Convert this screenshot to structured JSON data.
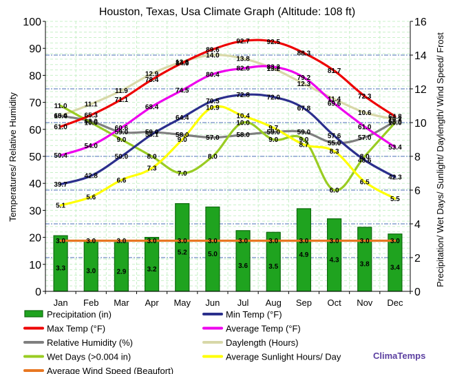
{
  "chart_data": {
    "type": "line",
    "title": "Houston, Texas, Usa Climate Graph (Altitude: 108 ft)",
    "ylabel_left": "Temperatures/ Relative Humidity",
    "ylabel_right": "Precipitation/ Wet Days/ Sunlight/ Daylength/ Wind Speed/ Frost",
    "categories": [
      "Jan",
      "Feb",
      "Mar",
      "Apr",
      "May",
      "Jun",
      "Jul",
      "Aug",
      "Sep",
      "Oct",
      "Nov",
      "Dec"
    ],
    "ylim_left": [
      0,
      100
    ],
    "ylim_right": [
      0,
      16
    ],
    "left_ticks": [
      "0",
      "10",
      "20",
      "30",
      "40",
      "50",
      "60",
      "70",
      "80",
      "90",
      "100"
    ],
    "right_ticks": [
      "0",
      "2",
      "4",
      "6",
      "8",
      "10",
      "12",
      "14",
      "16"
    ],
    "grid": true,
    "legend_position": "bottom",
    "brand": "ClimaTemps",
    "series": [
      {
        "name": "Precipitation (in)",
        "kind": "bar",
        "axis": "right",
        "color": "#1fa31f",
        "values": [
          3.3,
          3.0,
          2.9,
          3.2,
          5.2,
          5.0,
          3.6,
          3.5,
          4.9,
          4.3,
          3.8,
          3.4
        ],
        "labels": [
          "3.3",
          "3.0",
          "2.9",
          "3.2",
          "5.2",
          "5.0",
          "3.6",
          "3.5",
          "4.9",
          "4.3",
          "3.8",
          "3.4"
        ]
      },
      {
        "name": "Min Temp (°F)",
        "kind": "line",
        "axis": "left",
        "color": "#2b2f8c",
        "values": [
          39.7,
          42.8,
          50.0,
          58.1,
          64.4,
          70.5,
          72.8,
          72.0,
          67.8,
          57.6,
          48.6,
          42.3
        ],
        "labels": [
          "39.7",
          "42.8",
          "50.0",
          "58.1",
          "64.4",
          "70.5",
          "72.8",
          "72.0",
          "67.8",
          "57.6",
          "48.6",
          "42.3"
        ]
      },
      {
        "name": "Max Temp (°F)",
        "kind": "line",
        "axis": "left",
        "color": "#ee0000",
        "values": [
          61.0,
          65.3,
          71.1,
          78.4,
          84.6,
          89.6,
          92.7,
          92.5,
          88.3,
          81.7,
          72.3,
          64.8
        ],
        "labels": [
          "61.0",
          "65.3",
          "71.1",
          "78.4",
          "84.6",
          "89.6",
          "92.7",
          "92.5",
          "88.3",
          "81.7",
          "72.3",
          "64.8"
        ]
      },
      {
        "name": "Average Temp (°F)",
        "kind": "line",
        "axis": "left",
        "color": "#ee00ee",
        "values": [
          50.4,
          54.0,
          60.6,
          68.4,
          74.5,
          80.4,
          82.6,
          83.2,
          79.2,
          69.6,
          61.0,
          53.4
        ],
        "labels": [
          "50.4",
          "54.0",
          "60.6",
          "68.4",
          "74.5",
          "80.4",
          "82.6",
          "83.2",
          "79.2",
          "69.6",
          "61.0",
          "53.4"
        ]
      },
      {
        "name": "Relative Humidity (%)",
        "kind": "line",
        "axis": "left",
        "color": "#7f7f7f",
        "values": [
          65.0,
          63.0,
          59.0,
          59.0,
          58.0,
          57.0,
          58.0,
          59.0,
          59.0,
          55.0,
          57.0,
          63.0
        ],
        "labels": [
          "65.0",
          "63.0",
          "59.0",
          "59.0",
          "58.0",
          "57.0",
          "58.0",
          "59.0",
          "59.0",
          "55.0",
          "57.0",
          "63.0"
        ]
      },
      {
        "name": "Daylength (Hours)",
        "kind": "line",
        "axis": "right",
        "color": "#d8d8a8",
        "values": [
          10.4,
          11.1,
          11.9,
          12.9,
          13.6,
          14.0,
          13.8,
          13.2,
          12.3,
          11.4,
          10.6,
          10.2
        ],
        "labels": [
          "10.4",
          "11.1",
          "11.9",
          "12.9",
          "13.6",
          "14.0",
          "13.8",
          "13.2",
          "12.3",
          "11.4",
          "10.6",
          "10.2"
        ]
      },
      {
        "name": "Wet Days (>0.004 in)",
        "kind": "line",
        "axis": "right",
        "color": "#99cc22",
        "values": [
          11.0,
          10.0,
          9.0,
          8.0,
          7.0,
          8.0,
          10.0,
          9.0,
          9.0,
          6.0,
          8.0,
          10.0
        ],
        "labels": [
          "11.0",
          "10.0",
          "9.0",
          "8.0",
          "7.0",
          "8.0",
          "10.0",
          "9.0",
          "9.0",
          "6.0",
          "8.0",
          "10.0"
        ]
      },
      {
        "name": "Average Sunlight Hours/ Day",
        "kind": "line",
        "axis": "right",
        "color": "#ffff00",
        "values": [
          5.1,
          5.6,
          6.6,
          7.3,
          9.0,
          10.9,
          10.4,
          9.7,
          8.7,
          8.3,
          6.5,
          5.5
        ],
        "labels": [
          "5.1",
          "5.6",
          "6.6",
          "7.3",
          "9.0",
          "10.9",
          "10.4",
          "9.7",
          "8.7",
          "8.3",
          "6.5",
          "5.5"
        ]
      },
      {
        "name": "Average Wind Speed (Beaufort)",
        "kind": "line",
        "axis": "right",
        "color": "#e87722",
        "values": [
          3.0,
          3.0,
          3.0,
          3.0,
          3.0,
          3.0,
          3.0,
          3.0,
          3.0,
          3.0,
          3.0,
          3.0
        ],
        "labels": [
          "3.0",
          "3.0",
          "3.0",
          "3.0",
          "3.0",
          "3.0",
          "3.0",
          "3.0",
          "3.0",
          "3.0",
          "3.0",
          "3.0"
        ]
      }
    ]
  }
}
